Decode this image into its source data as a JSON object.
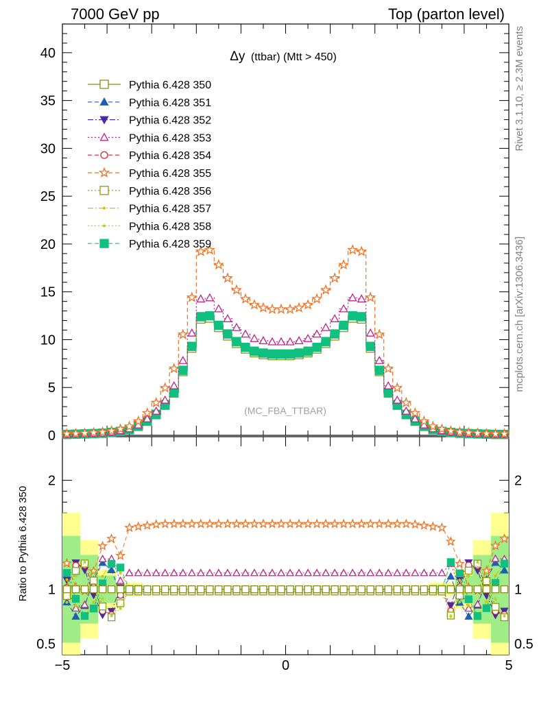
{
  "header": {
    "left": "7000 GeV pp",
    "right": "Top (parton level)"
  },
  "side_labels": {
    "rivet": "Rivet 3.1.10, ≥ 2.3M events",
    "mcplots": "mcplots.cern.ch [arXiv:1306.3436]"
  },
  "chart_data": [
    {
      "type": "line",
      "panel": "main",
      "title": "Δy (ttbar) (Mtt > 450)",
      "title_main": "Δy",
      "title_rest": "(ttbar) (Mtt > 450)",
      "watermark": "(MC_FBA_TTBAR)",
      "xlim": [
        -5,
        5
      ],
      "ylim": [
        0,
        43
      ],
      "yticks": [
        0,
        5,
        10,
        15,
        20,
        25,
        30,
        35,
        40
      ],
      "grid": false,
      "legend_position": "top-left",
      "x": [
        -4.9,
        -4.7,
        -4.5,
        -4.3,
        -4.1,
        -3.9,
        -3.7,
        -3.5,
        -3.3,
        -3.1,
        -2.9,
        -2.7,
        -2.5,
        -2.3,
        -2.1,
        -1.9,
        -1.7,
        -1.5,
        -1.3,
        -1.1,
        -0.9,
        -0.7,
        -0.5,
        -0.3,
        -0.1,
        0.1,
        0.3,
        0.5,
        0.7,
        0.9,
        1.1,
        1.3,
        1.5,
        1.7,
        1.9,
        2.1,
        2.3,
        2.5,
        2.7,
        2.9,
        3.1,
        3.3,
        3.5,
        3.7,
        3.9,
        4.1,
        4.3,
        4.5,
        4.7,
        4.9
      ],
      "series": [
        {
          "name": "Pythia 6.428 350",
          "color": "#8b8b1a",
          "marker": "square-open",
          "dash": "solid",
          "factor": 1.0
        },
        {
          "name": "Pythia 6.428 351",
          "color": "#1f5fb0",
          "marker": "triangle-up",
          "dash": "dashed",
          "factor": 1.0
        },
        {
          "name": "Pythia 6.428 352",
          "color": "#4b2aa0",
          "marker": "triangle-down",
          "dash": "dashdot",
          "factor": 1.0
        },
        {
          "name": "Pythia 6.428 353",
          "color": "#c0208f",
          "marker": "triangle-up-open",
          "dash": "dotted",
          "factor": 1.15
        },
        {
          "name": "Pythia 6.428 354",
          "color": "#e0202a",
          "marker": "circle-open",
          "dash": "dashed",
          "factor": 1.0
        },
        {
          "name": "Pythia 6.428 355",
          "color": "#f07020",
          "marker": "star-open",
          "dash": "dashed",
          "factor": 1.55
        },
        {
          "name": "Pythia 6.428 356",
          "color": "#8b9a10",
          "marker": "square-open",
          "dash": "dotted",
          "factor": 0.98
        },
        {
          "name": "Pythia 6.428 357",
          "color": "#d8c000",
          "marker": "dot",
          "dash": "dashdot",
          "factor": 1.0
        },
        {
          "name": "Pythia 6.428 358",
          "color": "#b8d020",
          "marker": "dot",
          "dash": "dotted",
          "factor": 1.0
        },
        {
          "name": "Pythia 6.428 359",
          "color": "#10c080",
          "marker": "square",
          "dash": "dashed",
          "factor": 1.0
        }
      ],
      "reference_values": [
        0.1,
        0.12,
        0.15,
        0.18,
        0.22,
        0.3,
        0.42,
        0.6,
        0.95,
        1.5,
        2.2,
        3.2,
        4.5,
        6.8,
        9.3,
        12.4,
        12.5,
        11.5,
        10.6,
        9.8,
        9.2,
        8.8,
        8.6,
        8.5,
        8.5,
        8.5,
        8.6,
        8.8,
        9.2,
        9.8,
        10.6,
        11.5,
        12.5,
        12.4,
        9.3,
        6.8,
        4.5,
        3.2,
        2.2,
        1.5,
        0.95,
        0.6,
        0.42,
        0.3,
        0.22,
        0.18,
        0.15,
        0.12,
        0.1,
        0.1
      ]
    },
    {
      "type": "line",
      "panel": "ratio",
      "ylabel": "Ratio to Pythia 6.428 350",
      "xlim": [
        -5,
        5
      ],
      "ylim": [
        0.4,
        2.4
      ],
      "ytick_labels": [
        "0.5",
        "1",
        "2"
      ],
      "xtick_labels": [
        "−5",
        "0",
        "5"
      ],
      "series_ratio_levels": [
        {
          "name": "Pythia 6.428 353",
          "level": 1.18
        },
        {
          "name": "Pythia 6.428 355",
          "level": 1.6
        },
        {
          "name": "Pythia 6.428 356",
          "level": 0.97
        },
        {
          "name": "Pythia 6.428 351",
          "level": 1.0
        }
      ]
    }
  ]
}
